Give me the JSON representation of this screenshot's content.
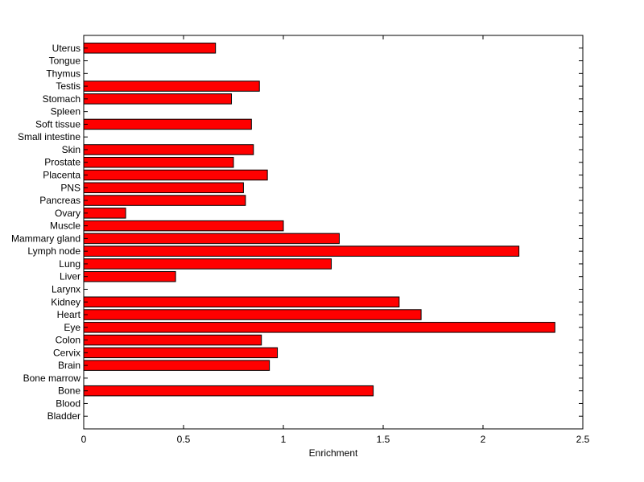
{
  "chart_data": {
    "type": "bar",
    "orientation": "horizontal",
    "title": "",
    "xlabel": "Enrichment",
    "ylabel": "",
    "xlim": [
      0,
      2.5
    ],
    "xticks": [
      0,
      0.5,
      1,
      1.5,
      2,
      2.5
    ],
    "xtick_labels": [
      "0",
      "0.5",
      "1",
      "1.5",
      "2",
      "2.5"
    ],
    "grid": false,
    "bar_color": "#ff0000",
    "bar_edge_color": "#000000",
    "categories": [
      "Bladder",
      "Blood",
      "Bone",
      "Bone marrow",
      "Brain",
      "Cervix",
      "Colon",
      "Eye",
      "Heart",
      "Kidney",
      "Larynx",
      "Liver",
      "Lung",
      "Lymph node",
      "Mammary gland",
      "Muscle",
      "Ovary",
      "Pancreas",
      "PNS",
      "Placenta",
      "Prostate",
      "Skin",
      "Small intestine",
      "Soft tissue",
      "Spleen",
      "Stomach",
      "Testis",
      "Thymus",
      "Tongue",
      "Uterus"
    ],
    "values": [
      0,
      0,
      1.45,
      0,
      0.93,
      0.97,
      0.89,
      2.36,
      1.69,
      1.58,
      0,
      0.46,
      1.24,
      2.18,
      1.28,
      1.0,
      0.21,
      0.81,
      0.8,
      0.92,
      0.75,
      0.85,
      0,
      0.84,
      0,
      0.74,
      0.88,
      0,
      0,
      0.66
    ]
  }
}
